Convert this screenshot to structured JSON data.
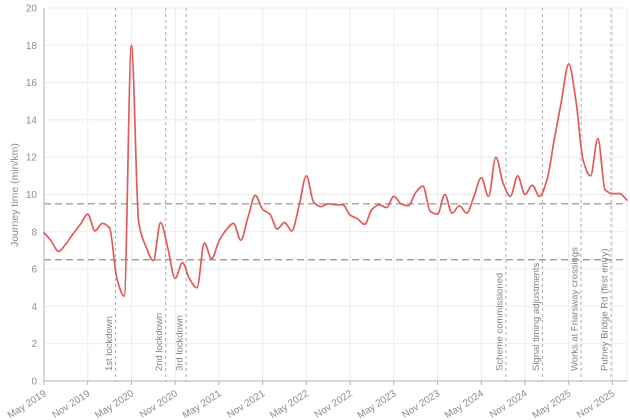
{
  "chart_data": {
    "type": "line",
    "title": "",
    "xlabel": "",
    "ylabel": "Journey time (min/km)",
    "ylim": [
      0,
      20
    ],
    "y_tick_step": 2,
    "grid": true,
    "legend": "none",
    "x_tick_labels": [
      "May 2019",
      "Nov 2019",
      "May 2020",
      "Nov 2020",
      "May 2021",
      "Nov 2021",
      "May 2022",
      "Nov 2022",
      "May 2023",
      "Nov 2023",
      "May 2024",
      "Nov 2024",
      "May 2025",
      "Nov 2025"
    ],
    "months": [
      "May 2019",
      "Jun 2019",
      "Jul 2019",
      "Aug 2019",
      "Sep 2019",
      "Oct 2019",
      "Nov 2019",
      "Dec 2019",
      "Jan 2020",
      "Feb 2020",
      "Mar 2020",
      "Apr 2020",
      "May 2020",
      "Jun 2020",
      "Jul 2020",
      "Aug 2020",
      "Sep 2020",
      "Oct 2020",
      "Nov 2020",
      "Dec 2020",
      "Jan 2021",
      "Feb 2021",
      "Mar 2021",
      "Apr 2021",
      "May 2021",
      "Jun 2021",
      "Jul 2021",
      "Aug 2021",
      "Sep 2021",
      "Oct 2021",
      "Nov 2021",
      "Dec 2021",
      "Jan 2022",
      "Feb 2022",
      "Mar 2022",
      "Apr 2022",
      "May 2022",
      "Jun 2022",
      "Jul 2022",
      "Aug 2022",
      "Sep 2022",
      "Oct 2022",
      "Nov 2022",
      "Dec 2022",
      "Jan 2023",
      "Feb 2023",
      "Mar 2023",
      "Apr 2023",
      "May 2023",
      "Jun 2023",
      "Jul 2023",
      "Aug 2023",
      "Sep 2023",
      "Oct 2023",
      "Nov 2023",
      "Dec 2023",
      "Jan 2024",
      "Feb 2024",
      "Mar 2024",
      "Apr 2024",
      "May 2024",
      "Jun 2024",
      "Jul 2024",
      "Aug 2024",
      "Sep 2024",
      "Oct 2024",
      "Nov 2024",
      "Dec 2024",
      "Jan 2025",
      "Feb 2025",
      "Mar 2025",
      "Apr 2025",
      "May 2025",
      "Jun 2025",
      "Jul 2025",
      "Aug 2025",
      "Sep 2025",
      "Oct 2025",
      "Nov 2025",
      "Dec 2025",
      "Jan 2026"
    ],
    "series": [
      {
        "name": "Journey time",
        "color": "#e15b5c",
        "values": [
          7.95,
          7.5,
          6.95,
          7.35,
          7.9,
          8.4,
          8.95,
          8.05,
          8.45,
          8.2,
          5.5,
          4.55,
          18,
          8.5,
          7.2,
          6.45,
          8.5,
          7.1,
          5.5,
          6.35,
          5.45,
          5,
          7.4,
          6.55,
          7.5,
          8.1,
          8.45,
          7.55,
          8.8,
          9.95,
          9.2,
          8.95,
          8.15,
          8.5,
          8.05,
          9.4,
          11,
          9.6,
          9.35,
          9.5,
          9.45,
          9.45,
          8.9,
          8.7,
          8.4,
          9.2,
          9.45,
          9.3,
          9.9,
          9.5,
          9.4,
          10.1,
          10.45,
          9.1,
          8.95,
          10,
          9,
          9.4,
          9,
          9.9,
          10.9,
          9.9,
          12,
          10.6,
          9.9,
          11,
          10,
          10.5,
          9.9,
          10.75,
          12.9,
          15,
          17,
          15,
          11.8,
          11,
          13,
          10.25,
          10.05,
          10.05,
          9.7
        ]
      }
    ],
    "reference_lines_y": [
      9.5,
      6.5
    ],
    "event_lines": [
      {
        "label": "1st lockdown",
        "month_index": 9.8
      },
      {
        "label": "2nd lockdown",
        "month_index": 16.7
      },
      {
        "label": "3rd lockdown",
        "month_index": 19.5
      },
      {
        "label": "Scheme commissioned",
        "month_index": 63.4
      },
      {
        "label": "Signal timing adjustments",
        "month_index": 68.4
      },
      {
        "label": "Works at Friarsway crossings",
        "month_index": 73.7
      },
      {
        "label": "Putney Bridge Rd (first entry)",
        "month_index": 77.8
      }
    ]
  },
  "colors": {
    "line": "#e15b5c",
    "grid": "#ececec",
    "axis": "#b3b3b3",
    "reference_dash": "#909090",
    "event_dash": "#b0b0b0",
    "tick_text": "#8c8c8c",
    "event_text": "#828282",
    "background": "#ffffff"
  }
}
